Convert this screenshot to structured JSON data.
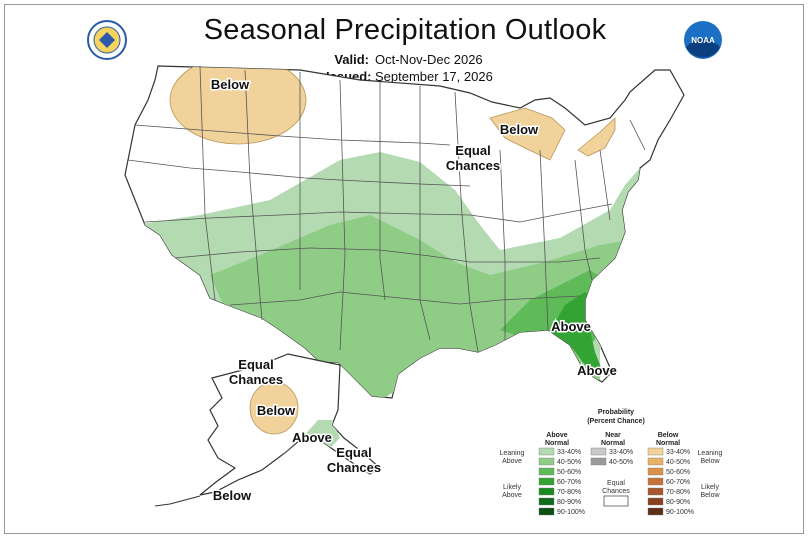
{
  "header": {
    "title": "Seasonal Precipitation Outlook",
    "valid_label": "Valid:",
    "valid_value": "Oct-Nov-Dec 2026",
    "issued_label": "Issued:",
    "issued_value": "September 17, 2026"
  },
  "logos": {
    "left": "doc-seal",
    "right": "noaa-logo",
    "noaa_text": "NOAA"
  },
  "map_labels": {
    "montana_below": "Below",
    "great_lakes_below": "Below",
    "equal_chances_1": "Equal",
    "equal_chances_2": "Chances",
    "southeast_above": "Above",
    "florida_above": "Above",
    "alaska_ec_1": "Equal",
    "alaska_ec_2": "Chances",
    "alaska_below": "Below",
    "alaska_above": "Above",
    "panhandle_ec_1": "Equal",
    "panhandle_ec_2": "Chances",
    "aleutian_below": "Below"
  },
  "legend": {
    "title_1": "Probability",
    "title_2": "(Percent Chance)",
    "above_head_1": "Above",
    "above_head_2": "Normal",
    "near_head_1": "Near",
    "near_head_2": "Normal",
    "below_head_1": "Below",
    "below_head_2": "Normal",
    "leaning_above_1": "Leaning",
    "leaning_above_2": "Above",
    "likely_above_1": "Likely",
    "likely_above_2": "Above",
    "leaning_below_1": "Leaning",
    "leaning_below_2": "Below",
    "likely_below_1": "Likely",
    "likely_below_2": "Below",
    "equal_1": "Equal",
    "equal_2": "Chances",
    "above_bins": [
      "33-40%",
      "40-50%",
      "50-60%",
      "60-70%",
      "70-80%",
      "80-90%",
      "90-100%"
    ],
    "near_bins": [
      "33-40%",
      "40-50%"
    ],
    "below_bins": [
      "33-40%",
      "40-50%",
      "50-60%",
      "60-70%",
      "70-80%",
      "80-90%",
      "90-100%"
    ],
    "above_colors": [
      "#b3dab0",
      "#8fcd87",
      "#5ebb58",
      "#33a334",
      "#1b8a23",
      "#106c1a",
      "#0b4f13"
    ],
    "near_colors": [
      "#c9c9c9",
      "#9a9a9a"
    ],
    "below_colors": [
      "#f0d29a",
      "#e7b266",
      "#d9924a",
      "#c4733a",
      "#a6572e",
      "#864122",
      "#5e2e17"
    ]
  },
  "colors": {
    "above_33_40": "#b3dab0",
    "above_40_50": "#8fcd87",
    "above_50_60": "#5ebb58",
    "above_60_70": "#33a334",
    "below_33_40": "#f0d29a",
    "boundary": "#444444"
  }
}
